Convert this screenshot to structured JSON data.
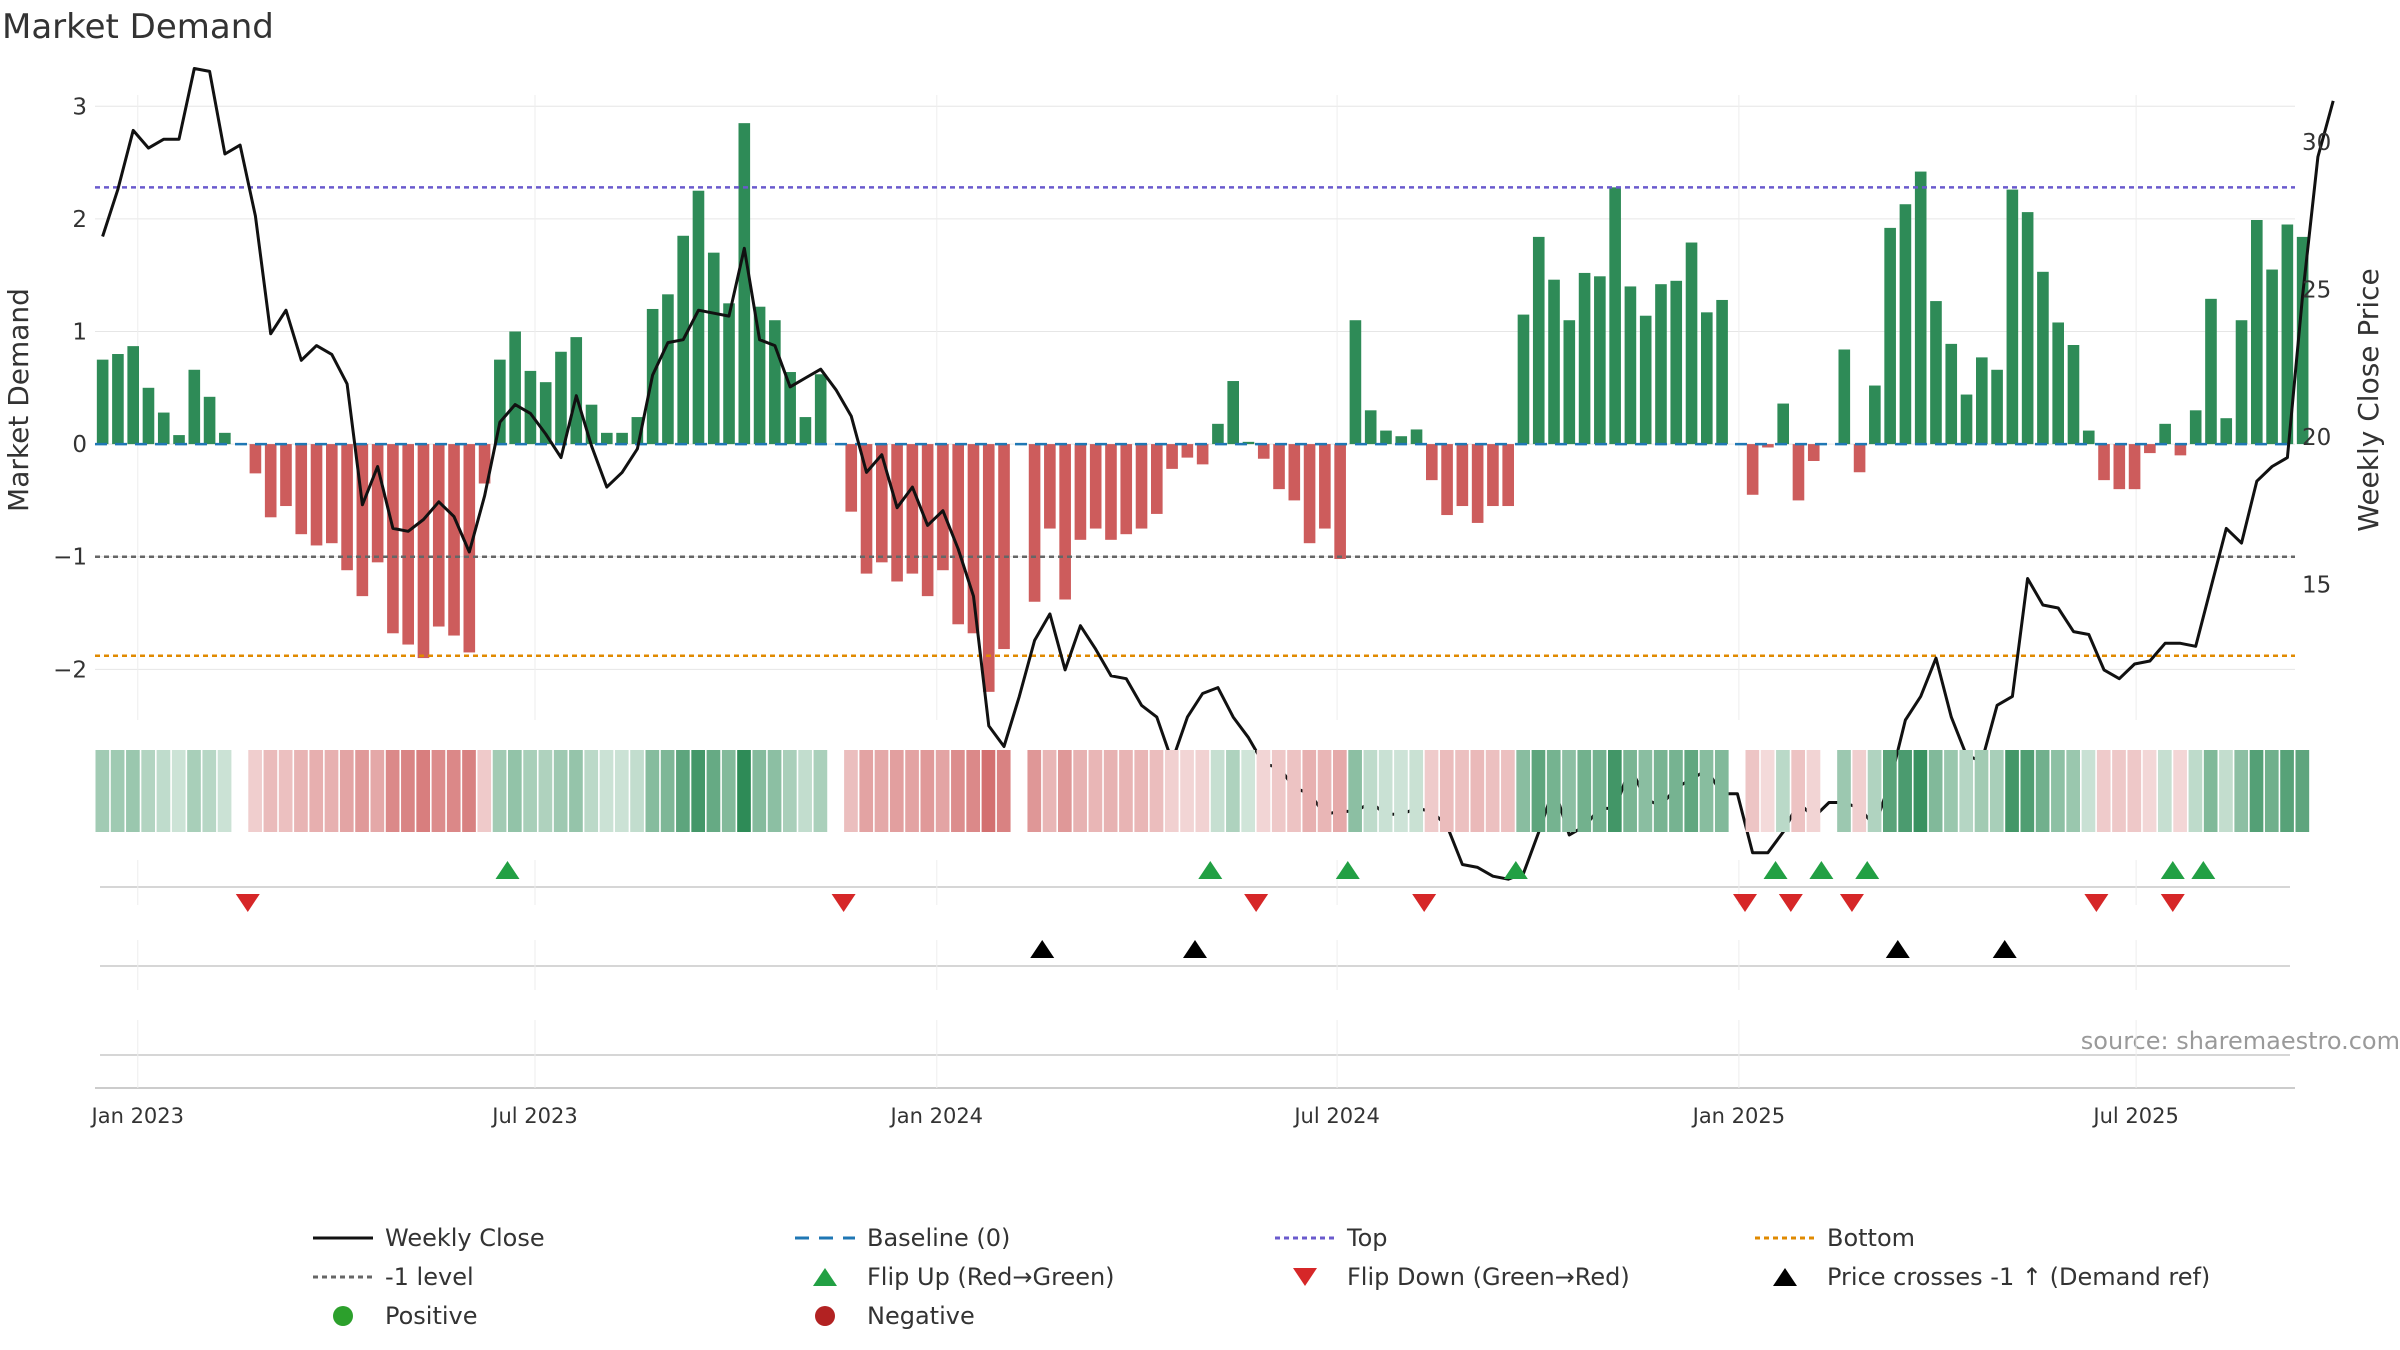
{
  "colors": {
    "up_bar": "#2e8b57",
    "down_bar": "#cd5c5c",
    "price_line": "#111111",
    "baseline": "#1f77b4",
    "top_line": "#6a5acd",
    "bottom_line": "#e08a00",
    "minus1_line": "#666666",
    "flip_up": "#22a044",
    "flip_down": "#d62728",
    "cross": "#000000",
    "positive": "#2ca02c",
    "negative": "#b22222",
    "axis_text": "#333333",
    "source_text": "#9a9a9a"
  },
  "chart_data": {
    "type": "bar+line",
    "title": "Market Demand",
    "ylabel_left": "Market Demand",
    "ylabel_right": "Weekly Close Price",
    "ylim_left": [
      -2.45,
      3.1
    ],
    "ylim_right": [
      10.4,
      31.6
    ],
    "left_ticks": [
      {
        "v": 3,
        "label": "3"
      },
      {
        "v": 2,
        "label": "2"
      },
      {
        "v": 1,
        "label": "1"
      },
      {
        "v": 0,
        "label": "0"
      },
      {
        "v": -1,
        "label": "−1"
      },
      {
        "v": -2,
        "label": "−2"
      }
    ],
    "right_ticks": [
      {
        "v": 30,
        "label": "30"
      },
      {
        "v": 25,
        "label": "25"
      },
      {
        "v": 20,
        "label": "20"
      },
      {
        "v": 15,
        "label": "15"
      }
    ],
    "x_ticks": [
      {
        "i": 2.3,
        "label": "Jan 2023"
      },
      {
        "i": 28.3,
        "label": "Jul 2023"
      },
      {
        "i": 54.6,
        "label": "Jan 2024"
      },
      {
        "i": 80.8,
        "label": "Jul 2024"
      },
      {
        "i": 107.1,
        "label": "Jan 2025"
      },
      {
        "i": 133.1,
        "label": "Jul 2025"
      }
    ],
    "weeks": 144,
    "demand": [
      0.75,
      0.8,
      0.87,
      0.5,
      0.28,
      0.08,
      0.66,
      0.42,
      0.1,
      0,
      -0.26,
      -0.65,
      -0.55,
      -0.8,
      -0.9,
      -0.88,
      -1.12,
      -1.35,
      -1.05,
      -1.68,
      -1.78,
      -1.9,
      -1.62,
      -1.7,
      -1.85,
      -0.35,
      0.75,
      1.0,
      0.65,
      0.55,
      0.82,
      0.95,
      0.35,
      0.1,
      0.1,
      0.24,
      1.2,
      1.33,
      1.85,
      2.25,
      1.7,
      1.25,
      2.85,
      1.22,
      1.1,
      0.64,
      0.24,
      0.62,
      0,
      -0.6,
      -1.15,
      -1.05,
      -1.22,
      -1.15,
      -1.35,
      -1.12,
      -1.6,
      -1.68,
      -2.2,
      -1.82,
      0,
      -1.4,
      -0.75,
      -1.38,
      -0.85,
      -0.75,
      -0.85,
      -0.8,
      -0.75,
      -0.62,
      -0.22,
      -0.12,
      -0.18,
      0.18,
      0.56,
      0.02,
      -0.13,
      -0.4,
      -0.5,
      -0.88,
      -0.75,
      -1.02,
      1.1,
      0.3,
      0.12,
      0.07,
      0.13,
      -0.32,
      -0.63,
      -0.55,
      -0.7,
      -0.55,
      -0.55,
      1.15,
      1.84,
      1.46,
      1.1,
      1.52,
      1.49,
      2.28,
      1.4,
      1.14,
      1.42,
      1.45,
      1.79,
      1.17,
      1.28,
      0,
      -0.45,
      -0.03,
      0.36,
      -0.5,
      -0.15,
      0,
      0.84,
      -0.25,
      0.52,
      1.92,
      2.13,
      2.42,
      1.27,
      0.89,
      0.44,
      0.77,
      0.66,
      2.26,
      2.06,
      1.53,
      1.08,
      0.88,
      0.12,
      -0.32,
      -0.4,
      -0.4,
      -0.08,
      0.18,
      -0.1,
      0.3,
      1.29,
      0.23,
      1.1,
      1.99,
      1.55,
      1.95,
      1.84
    ],
    "price": [
      26.8,
      28.4,
      30.4,
      29.8,
      30.1,
      30.1,
      32.5,
      32.4,
      29.6,
      29.9,
      27.5,
      23.5,
      24.3,
      22.6,
      23.1,
      22.8,
      21.8,
      17.7,
      19.0,
      16.9,
      16.8,
      17.2,
      17.8,
      17.3,
      16.1,
      18.0,
      20.5,
      21.1,
      20.8,
      20.1,
      19.3,
      21.4,
      19.7,
      18.3,
      18.8,
      19.6,
      22.1,
      23.2,
      23.3,
      24.3,
      24.2,
      24.1,
      26.4,
      23.3,
      23.1,
      21.7,
      22.0,
      22.3,
      21.6,
      20.7,
      18.8,
      19.4,
      17.6,
      18.3,
      17.0,
      17.5,
      16.2,
      14.6,
      10.2,
      9.5,
      11.2,
      13.1,
      14.0,
      12.1,
      13.6,
      12.8,
      11.9,
      11.8,
      10.9,
      10.5,
      9.0,
      10.5,
      11.3,
      11.5,
      10.5,
      9.8,
      8.9,
      8.8,
      8.1,
      7.9,
      7.2,
      7.3,
      7.3,
      7.6,
      7.2,
      7.2,
      7.4,
      7.3,
      6.8,
      5.5,
      5.4,
      5.1,
      5.0,
      5.2,
      6.6,
      8.1,
      6.5,
      6.8,
      7.4,
      7.4,
      8.8,
      7.7,
      7.5,
      8.1,
      8.4,
      8.7,
      7.9,
      7.9,
      5.9,
      5.9,
      6.6,
      7.6,
      7.1,
      7.6,
      7.6,
      7.4,
      6.8,
      8.3,
      10.4,
      11.2,
      12.5,
      10.5,
      9.2,
      9.0,
      10.9,
      11.2,
      15.2,
      14.3,
      14.2,
      13.4,
      13.3,
      12.1,
      11.8,
      12.3,
      12.4,
      13.0,
      13.0,
      12.9,
      14.9,
      16.9,
      16.4,
      18.5,
      19.0,
      19.3,
      24.8,
      29.5,
      31.4
    ]
  },
  "flip_up_weeks": [
    26.5,
    72.5,
    81.5,
    92.5,
    109.5,
    112.5,
    115.5,
    135.5,
    137.5
  ],
  "flip_down_weeks": [
    9.5,
    48.5,
    75.5,
    86.5,
    107.5,
    110.5,
    114.5,
    130.5,
    135.5
  ],
  "cross_weeks": [
    61.5,
    71.5,
    117.5,
    124.5
  ],
  "source": "source: sharemaestro.com",
  "legend": [
    {
      "key": "line-solid",
      "label": "Weekly Close"
    },
    {
      "key": "line-dash",
      "label": "Baseline (0)"
    },
    {
      "key": "line-dot-top",
      "label": "Top"
    },
    {
      "key": "line-dot-bottom",
      "label": "Bottom"
    },
    {
      "key": "line-dot-minus1",
      "label": "-1 level"
    },
    {
      "key": "tri-up-green",
      "label": "Flip Up (Red→Green)"
    },
    {
      "key": "tri-down-red",
      "label": "Flip Down (Green→Red)"
    },
    {
      "key": "tri-up-black",
      "label": "Price crosses -1 ↑ (Demand ref)"
    },
    {
      "key": "dot-green",
      "label": "Positive"
    },
    {
      "key": "dot-red",
      "label": "Negative"
    }
  ]
}
